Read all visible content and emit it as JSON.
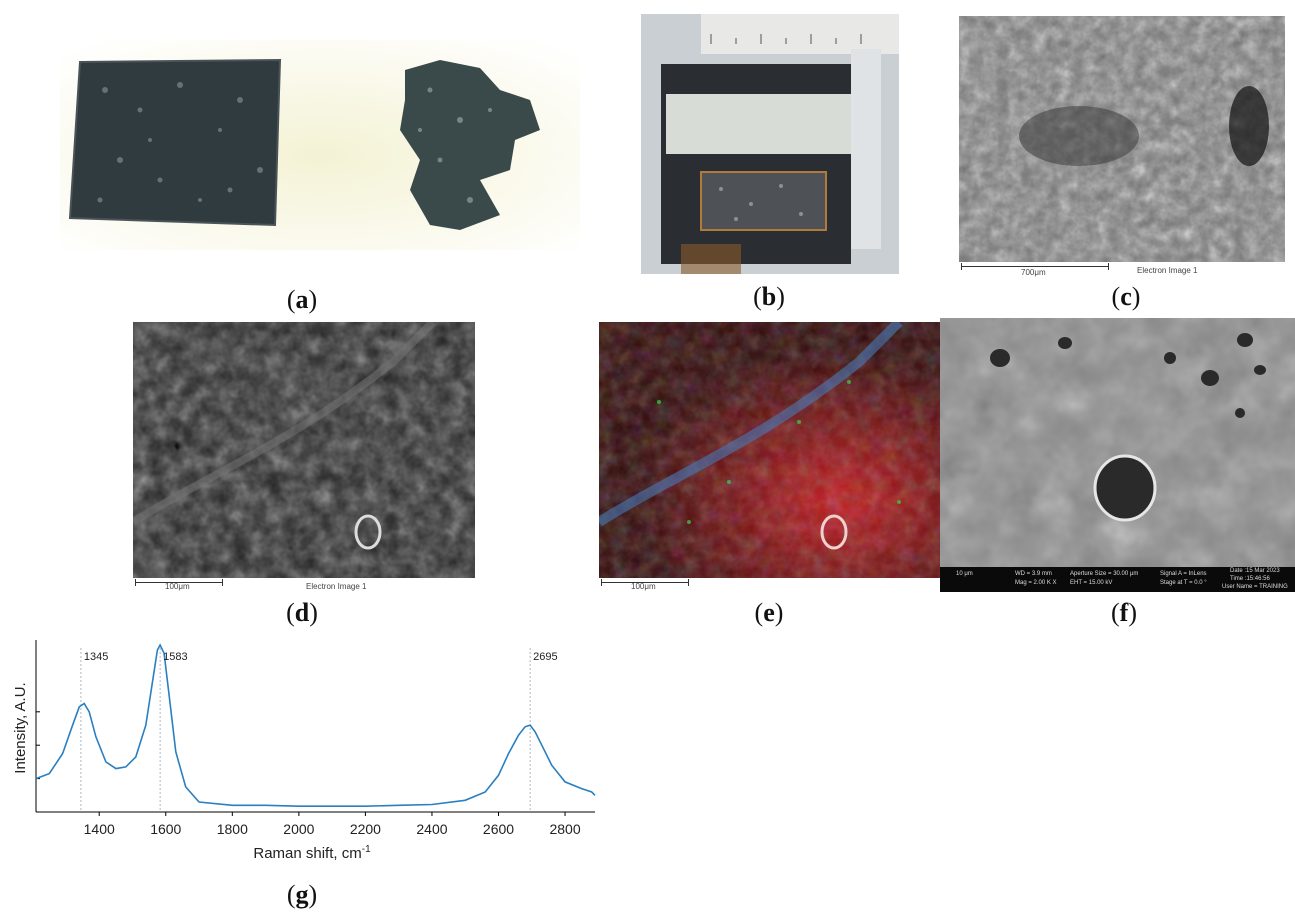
{
  "panels": {
    "a": {
      "label": "a"
    },
    "b": {
      "label": "b"
    },
    "c": {
      "label": "c",
      "scalebar": "700μm",
      "image_title": "Electron Image 1"
    },
    "d": {
      "label": "d",
      "scalebar": "100μm",
      "image_title": "Electron Image 1"
    },
    "e": {
      "label": "e",
      "scalebar": "100μm"
    },
    "f": {
      "label": "f",
      "scalebar": "10 μm",
      "info": {
        "wd": "WD = 3.9 mm",
        "mag": "Mag = 2.00 K X",
        "aperture": "Aperture Size = 30.00 μm",
        "eht": "EHT = 15.00 kV",
        "signal": "Signal A = InLens",
        "stage": "Stage at T = 0.0 °",
        "date": "Date :15 Mar 2023",
        "time": "Time :15:46:56",
        "user": "User Name = TRAINING"
      }
    },
    "g": {
      "label": "g"
    }
  },
  "colors": {
    "spectrum": "#2a7fc0",
    "peak_line": "#9aa6b8"
  },
  "chart_data": {
    "type": "line",
    "xlabel": "Raman shift, cm",
    "xlabel_sup": "-1",
    "ylabel": "Intensity, A.U.",
    "xlim": [
      1210,
      2890
    ],
    "ylim": [
      0,
      1.0
    ],
    "xticks": [
      1400,
      1600,
      1800,
      2000,
      2200,
      2400,
      2600,
      2800
    ],
    "yticks": [
      0.2,
      0.4,
      0.6
    ],
    "grid": false,
    "peaks": [
      {
        "x": 1345,
        "label": "1345"
      },
      {
        "x": 1583,
        "label": "1583"
      },
      {
        "x": 2695,
        "label": "2695"
      }
    ],
    "x": [
      1210,
      1250,
      1290,
      1320,
      1340,
      1355,
      1370,
      1390,
      1420,
      1450,
      1480,
      1510,
      1540,
      1560,
      1575,
      1583,
      1595,
      1610,
      1630,
      1660,
      1700,
      1800,
      1900,
      2000,
      2100,
      2200,
      2300,
      2400,
      2500,
      2560,
      2600,
      2630,
      2660,
      2680,
      2695,
      2710,
      2730,
      2760,
      2800,
      2850,
      2880,
      2890
    ],
    "y": [
      0.2,
      0.23,
      0.35,
      0.52,
      0.63,
      0.65,
      0.6,
      0.45,
      0.3,
      0.26,
      0.27,
      0.33,
      0.52,
      0.78,
      0.97,
      1.0,
      0.95,
      0.7,
      0.36,
      0.15,
      0.06,
      0.04,
      0.04,
      0.035,
      0.035,
      0.035,
      0.04,
      0.045,
      0.07,
      0.12,
      0.22,
      0.35,
      0.46,
      0.51,
      0.52,
      0.48,
      0.4,
      0.28,
      0.18,
      0.14,
      0.12,
      0.1
    ]
  }
}
